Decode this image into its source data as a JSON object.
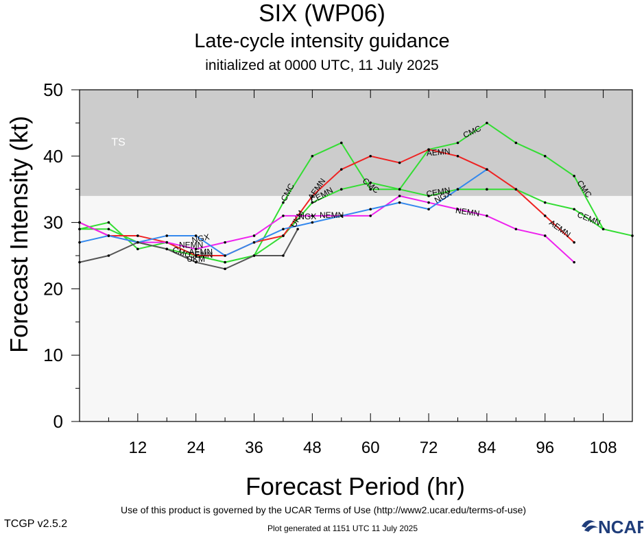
{
  "header": {
    "title": "SIX (WP06)",
    "subtitle": "Late-cycle intensity guidance",
    "init": "initialized at 0000 UTC, 11 July 2025"
  },
  "footer": {
    "terms": "Use of this product is governed by the UCAR Terms of Use (http://www2.ucar.edu/terms-of-use)",
    "version": "TCGP v2.5.2",
    "generated": "Plot generated at 1151 UTC   11 July 2025",
    "logo_text": "NCAR"
  },
  "chart_data": {
    "type": "line",
    "xlabel": "Forecast Period (hr)",
    "ylabel": "Forecast Intensity (kt)",
    "xlim": [
      0,
      114
    ],
    "ylim": [
      0,
      50
    ],
    "xticks": [
      12,
      24,
      36,
      48,
      60,
      72,
      84,
      96,
      108
    ],
    "yticks": [
      0,
      10,
      20,
      30,
      40,
      50
    ],
    "bands": [
      {
        "label": "TS",
        "from": 34,
        "to": 50,
        "color": "#cccccc"
      }
    ],
    "plot_background": "#f7f7f7",
    "series": [
      {
        "name": "CMC",
        "color": "#33dd33",
        "points": [
          [
            0,
            29
          ],
          [
            6,
            30
          ],
          [
            12,
            26
          ],
          [
            18,
            27
          ],
          [
            24,
            25
          ],
          [
            30,
            24
          ],
          [
            36,
            25
          ],
          [
            42,
            33
          ],
          [
            48,
            40
          ],
          [
            54,
            42
          ],
          [
            60,
            35
          ],
          [
            66,
            35
          ],
          [
            72,
            41
          ],
          [
            78,
            42
          ],
          [
            84,
            45
          ],
          [
            90,
            42
          ],
          [
            96,
            40
          ],
          [
            102,
            37
          ],
          [
            108,
            29
          ],
          [
            114,
            28
          ]
        ]
      },
      {
        "name": "CEMN",
        "color": "#33dd33",
        "points": [
          [
            0,
            29
          ],
          [
            6,
            29
          ],
          [
            12,
            27
          ],
          [
            18,
            26
          ],
          [
            24,
            25
          ],
          [
            30,
            24
          ],
          [
            36,
            25
          ],
          [
            42,
            28
          ],
          [
            48,
            33
          ],
          [
            54,
            35
          ],
          [
            60,
            36
          ],
          [
            66,
            35
          ],
          [
            72,
            34
          ],
          [
            78,
            35
          ],
          [
            84,
            35
          ],
          [
            90,
            35
          ],
          [
            96,
            33
          ],
          [
            102,
            32
          ],
          [
            108,
            29
          ]
        ]
      },
      {
        "name": "AEMN",
        "color": "#ee2222",
        "points": [
          [
            0,
            30
          ],
          [
            6,
            28
          ],
          [
            12,
            28
          ],
          [
            18,
            27
          ],
          [
            24,
            25
          ],
          [
            30,
            25
          ],
          [
            36,
            27
          ],
          [
            42,
            28
          ],
          [
            48,
            34
          ],
          [
            54,
            38
          ],
          [
            60,
            40
          ],
          [
            66,
            39
          ],
          [
            72,
            41
          ],
          [
            78,
            40
          ],
          [
            84,
            38
          ],
          [
            90,
            35
          ],
          [
            96,
            31
          ],
          [
            102,
            27
          ]
        ]
      },
      {
        "name": "NEMN",
        "color": "#ee22ee",
        "points": [
          [
            0,
            30
          ],
          [
            6,
            28
          ],
          [
            12,
            27
          ],
          [
            18,
            27
          ],
          [
            24,
            26
          ],
          [
            30,
            27
          ],
          [
            36,
            28
          ],
          [
            42,
            31
          ],
          [
            48,
            31
          ],
          [
            54,
            31
          ],
          [
            60,
            31
          ],
          [
            66,
            34
          ],
          [
            72,
            33
          ],
          [
            78,
            32
          ],
          [
            84,
            31
          ],
          [
            90,
            29
          ],
          [
            96,
            28
          ],
          [
            102,
            24
          ]
        ]
      },
      {
        "name": "NGX",
        "color": "#3388ee",
        "points": [
          [
            0,
            27
          ],
          [
            6,
            28
          ],
          [
            12,
            27
          ],
          [
            18,
            28
          ],
          [
            24,
            28
          ],
          [
            30,
            25
          ],
          [
            36,
            27
          ],
          [
            42,
            29
          ],
          [
            48,
            30
          ],
          [
            54,
            31
          ],
          [
            60,
            32
          ],
          [
            66,
            33
          ],
          [
            72,
            32
          ],
          [
            78,
            35
          ],
          [
            84,
            38
          ]
        ]
      },
      {
        "name": "UKM",
        "color": "#555555",
        "points": [
          [
            0,
            24
          ],
          [
            6,
            25
          ],
          [
            12,
            27
          ],
          [
            18,
            26
          ],
          [
            24,
            24
          ],
          [
            30,
            23
          ],
          [
            36,
            25
          ],
          [
            42,
            25
          ],
          [
            45,
            29
          ]
        ]
      }
    ],
    "annotations": [
      {
        "text": "TS",
        "x": 8,
        "y": 42,
        "color": "#ffffff"
      },
      {
        "text": "CMC",
        "x": 43,
        "y": 34.5,
        "angle": -62
      },
      {
        "text": "CMC",
        "x": 60,
        "y": 35.5,
        "angle": 40
      },
      {
        "text": "CMC",
        "x": 81,
        "y": 43.6,
        "angle": -25
      },
      {
        "text": "CMC",
        "x": 104,
        "y": 35,
        "angle": 55
      },
      {
        "text": "CMC",
        "x": 21,
        "y": 25.4,
        "angle": 20
      },
      {
        "text": "CEMN",
        "x": 50,
        "y": 34,
        "angle": -30
      },
      {
        "text": "CEMN",
        "x": 74,
        "y": 34.5,
        "angle": -10
      },
      {
        "text": "CEMN",
        "x": 105,
        "y": 30.5,
        "angle": 22
      },
      {
        "text": "CEMN",
        "x": 25,
        "y": 25,
        "angle": 0
      },
      {
        "text": "AEMN",
        "x": 49,
        "y": 35,
        "angle": -55
      },
      {
        "text": "AEMN",
        "x": 74,
        "y": 40.5,
        "angle": -5
      },
      {
        "text": "AEMN",
        "x": 99,
        "y": 29,
        "angle": 35
      },
      {
        "text": "AEMN",
        "x": 25,
        "y": 25.5,
        "angle": 0
      },
      {
        "text": "NEMN",
        "x": 80,
        "y": 31.5,
        "angle": 8
      },
      {
        "text": "NEMN",
        "x": 52,
        "y": 31,
        "angle": 0
      },
      {
        "text": "NEMN",
        "x": 23,
        "y": 26.5,
        "angle": 0
      },
      {
        "text": "NGX",
        "x": 47,
        "y": 30.8,
        "angle": 0
      },
      {
        "text": "NGX",
        "x": 25,
        "y": 27.5,
        "angle": -12
      },
      {
        "text": "NGX",
        "x": 75,
        "y": 33.8,
        "angle": -28
      },
      {
        "text": "UKM",
        "x": 45,
        "y": 30.5,
        "angle": -60
      },
      {
        "text": "UKM",
        "x": 24,
        "y": 24.4,
        "angle": 0
      }
    ]
  }
}
